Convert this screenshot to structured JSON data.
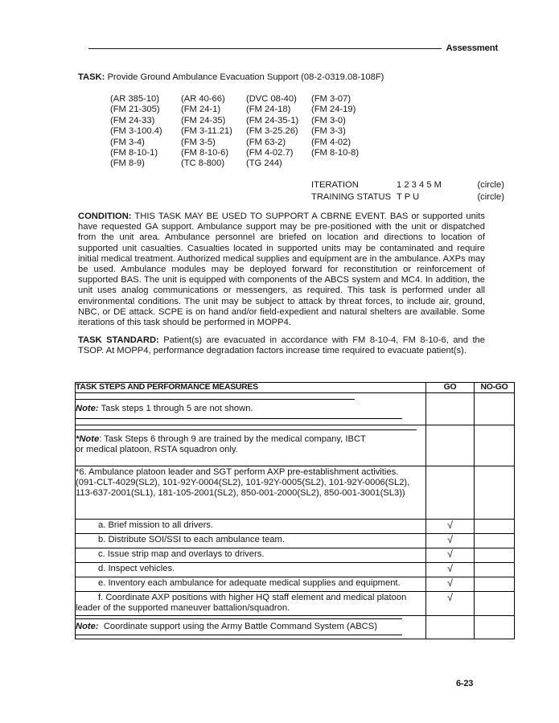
{
  "header": {
    "label": "Assessment"
  },
  "task": {
    "label": "TASK:",
    "title": "Provide Ground Ambulance Evacuation Support (08-2-0319.08-108F)",
    "references": [
      [
        "(AR 385-10)",
        "(AR 40-66)",
        "(DVC 08-40)",
        "(FM 3-07)"
      ],
      [
        "(FM 21-305)",
        "(FM 24-1)",
        "(FM 24-18)",
        "(FM 24-19)"
      ],
      [
        "(FM 24-33)",
        "(FM 24-35)",
        "(FM 24-35-1)",
        "(FM 3-0)"
      ],
      [
        "(FM 3-100.4)",
        "(FM 3-11.21)",
        "(FM 3-25.26)",
        "(FM 3-3)"
      ],
      [
        "(FM 3-4)",
        "(FM 3-5)",
        "(FM 63-2)",
        "(FM 4-02)"
      ],
      [
        "(FM 8-10-1)",
        "(FM 8-10-6)",
        "(FM 4-02.7)",
        "(FM 8-10-8)"
      ],
      [
        "(FM 8-9)",
        "(TC 8-800)",
        "(TG 244)",
        ""
      ]
    ]
  },
  "iteration": {
    "label": "ITERATION",
    "values": "1 2 3 4  5 M",
    "circle": "(circle)"
  },
  "training_status": {
    "label": "TRAINING STATUS",
    "values": "T P U",
    "circle": "(circle)"
  },
  "condition": {
    "label": "CONDITION:",
    "text": "THIS TASK MAY BE USED TO SUPPORT A CBRNE EVENT. BAS or supported units have requested GA support. Ambulance support may be pre-positioned with the unit or dispatched from the unit area. Ambulance personnel are briefed on location and directions to location of supported unit casualties. Casualties located in supported units may be contaminated and require initial medical treatment. Authorized medical supplies and equipment are in the ambulance. AXPs may be used. Ambulance modules may be deployed forward for reconstitution or reinforcement of supported BAS. The unit is equipped with components of the ABCS system and MC4. In addition, the unit uses analog communications or messengers, as required. This task is performed under all environmental conditions. The unit may be subject to attack by threat forces, to include air, ground, NBC, or DE attack. SCPE is on hand and/or field-expedient and natural shelters are available. Some iterations of this task should be performed in MOPP4."
  },
  "task_standard": {
    "label": "TASK STANDARD:",
    "text": "Patient(s) are evacuated in accordance with FM 8-10-4, FM 8-10-6, and the TSOP. At MOPP4, performance degradation factors increase time required to evacuate patient(s)."
  },
  "table": {
    "col_headers": [
      "TASK STEPS AND PERFORMANCE MEASURES",
      "GO",
      "NO-GO"
    ],
    "note_steps_hidden": {
      "label": "Note:",
      "text": "Task steps 1 through 5 are not shown."
    },
    "note_training": {
      "label": "*Note",
      "text": ": Task Steps 6 through 9 are trained by the medical company, IBCT or medical platoon, RSTA squadron only."
    },
    "step6_text": "*6. Ambulance platoon leader and SGT perform AXP pre-establishment activities. (091-CLT-4029(SL2), 101-92Y-0004(SL2), 101-92Y-0005(SL2), 101-92Y-0006(SL2), 113-637-2001(SL1), 181-105-2001(SL2), 850-001-2000(SL2), 850-001-3001(SL3))",
    "substeps": [
      {
        "text": "a. Brief mission to all drivers.",
        "go": "√",
        "nogo": ""
      },
      {
        "text": "b. Distribute SOI/SSI to each ambulance team.",
        "go": "√",
        "nogo": ""
      },
      {
        "text": "c. Issue strip map and overlays to drivers.",
        "go": "√",
        "nogo": ""
      },
      {
        "text": "d. Inspect vehicles.",
        "go": "√",
        "nogo": ""
      },
      {
        "text": "e. Inventory each ambulance for adequate medical supplies and equipment.",
        "go": "√",
        "nogo": ""
      },
      {
        "text": "f. Coordinate AXP positions with higher HQ staff element and medical platoon leader of the supported maneuver battalion/squadron.",
        "go": "√",
        "nogo": ""
      }
    ],
    "note_abcs": {
      "label": "Note:",
      "text": "Coordinate support using the Army Battle Command System (ABCS)"
    }
  },
  "footer": {
    "page_number": "6-23"
  }
}
